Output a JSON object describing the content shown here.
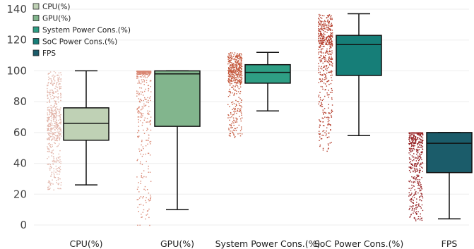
{
  "chart_data": {
    "type": "box",
    "title": "",
    "xlabel": "",
    "ylabel": "",
    "ylim": [
      0,
      140
    ],
    "yticks": [
      0,
      20,
      40,
      60,
      80,
      100,
      120,
      140
    ],
    "grid": true,
    "legend": "top-left",
    "categories": [
      "CPU(%)",
      "GPU(%)",
      "System Power Cons.(%)",
      "SoC Power Cons.(%)",
      "FPS"
    ],
    "series": [
      {
        "name": "CPU(%)",
        "min": 26,
        "q1": 55,
        "median": 66,
        "q3": 76,
        "max": 100,
        "color": "#bfd1b5",
        "jitter_color": "#e2b5aa",
        "jitter_range": [
          23,
          100
        ]
      },
      {
        "name": "GPU(%)",
        "min": 10,
        "q1": 64,
        "median": 98,
        "q3": 100,
        "max": 100,
        "color": "#82b58d",
        "jitter_color": "#d98773",
        "jitter_range": [
          0,
          100
        ]
      },
      {
        "name": "System Power Cons.(%)",
        "min": 74,
        "q1": 92,
        "median": 99,
        "q3": 104,
        "max": 112,
        "color": "#2e9e84",
        "jitter_color": "#c4573b",
        "jitter_range": [
          57,
          112
        ]
      },
      {
        "name": "SoC Power Cons.(%)",
        "min": 58,
        "q1": 97,
        "median": 117,
        "q3": 123,
        "max": 137,
        "color": "#167e78",
        "jitter_color": "#b33a28",
        "jitter_range": [
          48,
          137
        ]
      },
      {
        "name": "FPS",
        "min": 4,
        "q1": 34,
        "median": 53,
        "q3": 60,
        "max": 60,
        "color": "#1b5c6a",
        "jitter_color": "#951f21",
        "jitter_range": [
          3,
          60
        ]
      }
    ]
  }
}
